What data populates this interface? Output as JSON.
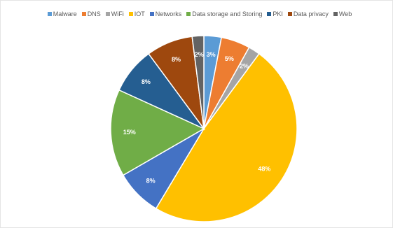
{
  "chart_data": {
    "type": "pie",
    "title": "",
    "legend_position": "top",
    "categories": [
      "Malware",
      "DNS",
      "WiFi",
      "IOT",
      "Networks",
      "Data storage and Storing",
      "PKI",
      "Data privacy",
      "Web"
    ],
    "values": [
      3,
      5,
      2,
      48,
      8,
      15,
      8,
      8,
      2
    ],
    "labels": [
      "3%",
      "5%",
      "2%",
      "48%",
      "8%",
      "15%",
      "8%",
      "8%",
      "2%"
    ],
    "colors": [
      "#5b9bd5",
      "#ed7d31",
      "#a5a5a5",
      "#ffc000",
      "#4472c4",
      "#70ad47",
      "#255e91",
      "#9e480e",
      "#636363"
    ]
  }
}
